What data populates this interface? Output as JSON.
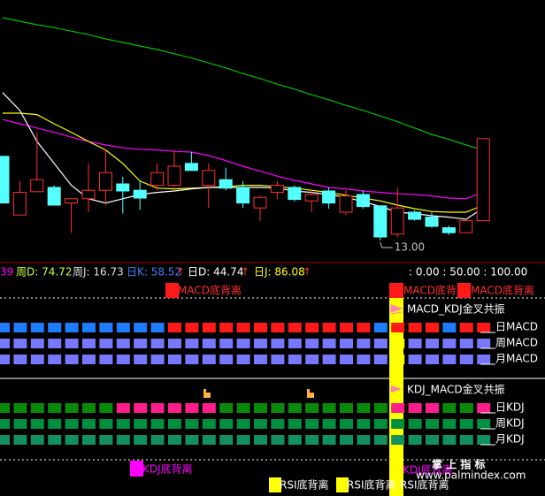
{
  "chart_data": {
    "type": "candlestick",
    "ylim": [
      12.7,
      16.4
    ],
    "open": [
      14.19,
      13.36,
      13.69,
      13.75,
      13.53,
      13.59,
      13.71,
      13.8,
      13.71,
      13.78,
      13.78,
      14.09,
      13.78,
      13.86,
      13.75,
      13.46,
      13.68,
      13.75,
      13.56,
      13.7,
      13.4,
      13.65,
      13.49,
      13.09,
      13.4,
      13.33,
      13.18,
      13.11,
      13.28
    ],
    "high": [
      14.19,
      13.84,
      14.53,
      13.78,
      13.59,
      14.09,
      14.28,
      13.9,
      13.84,
      14.09,
      14.28,
      14.25,
      14.09,
      14.03,
      13.84,
      13.63,
      13.84,
      13.78,
      13.71,
      13.75,
      13.71,
      13.71,
      13.49,
      13.75,
      13.43,
      13.4,
      13.21,
      13.3,
      14.44
    ],
    "low": [
      13.53,
      13.36,
      13.69,
      13.5,
      13.11,
      13.4,
      13.5,
      13.38,
      13.43,
      13.71,
      13.75,
      13.99,
      13.46,
      13.71,
      13.46,
      13.28,
      13.59,
      13.55,
      13.4,
      13.45,
      13.36,
      13.45,
      13.0,
      13.05,
      13.28,
      13.18,
      13.08,
      13.1,
      13.28
    ],
    "close": [
      13.53,
      13.68,
      13.86,
      13.5,
      13.59,
      13.71,
      13.96,
      13.7,
      13.6,
      13.96,
      14.05,
      13.99,
      13.99,
      13.74,
      13.53,
      13.61,
      13.78,
      13.58,
      13.65,
      13.53,
      13.63,
      13.48,
      13.05,
      13.46,
      13.3,
      13.2,
      13.11,
      13.28,
      14.44
    ],
    "up_color": "#ff3232",
    "down_color": "#54ffff",
    "annotation": "13.00",
    "series": [
      {
        "color": "#00c000",
        "values": [
          16.15,
          16.1,
          16.05,
          16.01,
          15.96,
          15.91,
          15.85,
          15.8,
          15.75,
          15.7,
          15.64,
          15.58,
          15.51,
          15.44,
          15.36,
          15.29,
          15.21,
          15.14,
          15.06,
          14.99,
          14.91,
          14.84,
          14.76,
          14.68,
          14.59,
          14.5,
          14.43,
          14.35,
          14.28
        ]
      },
      {
        "color": "#ff00ff",
        "values": [
          14.71,
          14.65,
          14.59,
          14.53,
          14.46,
          14.4,
          14.35,
          14.31,
          14.29,
          14.28,
          14.26,
          14.25,
          14.2,
          14.13,
          14.05,
          13.98,
          13.91,
          13.85,
          13.8,
          13.75,
          13.73,
          13.7,
          13.68,
          13.66,
          13.65,
          13.63,
          13.6,
          13.59,
          13.68
        ]
      },
      {
        "color": "#ffff00",
        "values": [
          14.8,
          14.8,
          14.78,
          14.65,
          14.53,
          14.4,
          14.28,
          14.09,
          13.84,
          13.74,
          13.73,
          13.74,
          13.75,
          13.76,
          13.78,
          13.78,
          13.76,
          13.74,
          13.71,
          13.68,
          13.64,
          13.6,
          13.56,
          13.5,
          13.45,
          13.41,
          13.4,
          13.4,
          13.5
        ]
      },
      {
        "color": "#ffffff",
        "values": [
          15.09,
          14.84,
          14.4,
          14.09,
          13.78,
          13.59,
          13.53,
          13.59,
          13.65,
          13.68,
          13.7,
          13.73,
          13.75,
          13.75,
          13.75,
          13.75,
          13.74,
          13.7,
          13.68,
          13.65,
          13.61,
          13.55,
          13.48,
          13.4,
          13.38,
          13.35,
          13.33,
          13.3,
          13.46
        ]
      }
    ]
  },
  "header": [
    "39",
    "周D: 74.72",
    "周J: 16.73",
    "日K: 58.52",
    "↑",
    "日D: 44.74",
    "↑",
    "日J: 86.08",
    "↑",
    ": 0.00 : 50.00 : 100.00"
  ],
  "signals": {
    "macd": [
      "MACD底背离",
      "MACD底背离",
      "MACD底背离"
    ],
    "macd_kdj": "MACD_KDJ金叉共振",
    "kdj_macd": "KDJ_MACD金叉共振",
    "kdj": [
      "KDJ底背离",
      "KDJ底背离"
    ],
    "rsi": [
      "RSI底背离",
      "RSI底背离",
      "RSI底背离"
    ],
    "brand": "掌 上 指 标",
    "site": "www.palmindex.com"
  },
  "rows": [
    {
      "label": "日MACD",
      "colors": [
        "#1e7cff",
        "#1e7cff",
        "#1e7cff",
        "#1e7cff",
        "#1e7cff",
        "#1e7cff",
        "#1e7cff",
        "#1e7cff",
        "#1e7cff",
        "#1e7cff",
        "#ff1a1a",
        "#ff1a1a",
        "#ff1a1a",
        "#ff1a1a",
        "#ff1a1a",
        "#ff1a1a",
        "#ff1a1a",
        "#ff1a1a",
        "#ff1a1a",
        "#ff1a1a",
        "#ff1a1a",
        "#ff1a1a",
        "#1e7cff",
        "#ff1a1a",
        "#ff1a1a",
        "#ff1a1a",
        "#1e7cff",
        "#ff1a1a",
        "#ff1a1a"
      ]
    },
    {
      "label": "周MACD",
      "colors": [
        "#7878ff",
        "#7878ff",
        "#7878ff",
        "#7878ff",
        "#7878ff",
        "#7878ff",
        "#7878ff",
        "#7878ff",
        "#7878ff",
        "#7878ff",
        "#7878ff",
        "#7878ff",
        "#7878ff",
        "#7878ff",
        "#7878ff",
        "#7878ff",
        "#7878ff",
        "#7878ff",
        "#7878ff",
        "#7878ff",
        "#7878ff",
        "#7878ff",
        "#7878ff",
        "#ffff00",
        "#7878ff",
        "#7878ff",
        "#7878ff",
        "#7878ff",
        "#7878ff"
      ]
    },
    {
      "label": "月MACD",
      "colors": [
        "#7878ff",
        "#7878ff",
        "#7878ff",
        "#7878ff",
        "#7878ff",
        "#7878ff",
        "#7878ff",
        "#7878ff",
        "#7878ff",
        "#7878ff",
        "#7878ff",
        "#7878ff",
        "#7878ff",
        "#7878ff",
        "#7878ff",
        "#7878ff",
        "#7878ff",
        "#7878ff",
        "#7878ff",
        "#7878ff",
        "#7878ff",
        "#7878ff",
        "#7878ff",
        "#ffff00",
        "#7878ff",
        "#7878ff",
        "#7878ff",
        "#7878ff",
        "#7878ff"
      ]
    },
    {
      "label": "日KDJ",
      "colors": [
        "#0a8a0a",
        "#0a8a0a",
        "#0a8a0a",
        "#0a8a0a",
        "#0a8a0a",
        "#0a8a0a",
        "#0a8a0a",
        "#ff1e8c",
        "#ff1e8c",
        "#ff1e8c",
        "#ff1e8c",
        "#ff1e8c",
        "#ff1e8c",
        "#0a8a0a",
        "#0a8a0a",
        "#0a8a0a",
        "#0a8a0a",
        "#0a8a0a",
        "#0a8a0a",
        "#0a8a0a",
        "#0a8a0a",
        "#0a8a0a",
        "#0a8a0a",
        "#ff1e8c",
        "#ff1e8c",
        "#ff1e8c",
        "#0a8a0a",
        "#0a8a0a",
        "#ff1e8c"
      ]
    },
    {
      "label": "周KDJ",
      "colors": [
        "#008f3f",
        "#008f3f",
        "#008f3f",
        "#008f3f",
        "#008f3f",
        "#008f3f",
        "#008f3f",
        "#008f3f",
        "#008f3f",
        "#008f3f",
        "#008f3f",
        "#008f3f",
        "#008f3f",
        "#008f3f",
        "#008f3f",
        "#008f3f",
        "#008f3f",
        "#008f3f",
        "#008f3f",
        "#008f3f",
        "#008f3f",
        "#008f3f",
        "#008f3f",
        "#008f3f",
        "#008f3f",
        "#008f3f",
        "#008f3f",
        "#008f3f",
        "#008f3f"
      ]
    },
    {
      "label": "月KDJ",
      "colors": [
        "#12905f",
        "#12905f",
        "#12905f",
        "#12905f",
        "#12905f",
        "#12905f",
        "#12905f",
        "#12905f",
        "#12905f",
        "#12905f",
        "#12905f",
        "#12905f",
        "#12905f",
        "#12905f",
        "#12905f",
        "#12905f",
        "#12905f",
        "#12905f",
        "#12905f",
        "#12905f",
        "#12905f",
        "#12905f",
        "#12905f",
        "#12905f",
        "#12905f",
        "#12905f",
        "#12905f",
        "#12905f",
        "#12905f"
      ]
    }
  ]
}
